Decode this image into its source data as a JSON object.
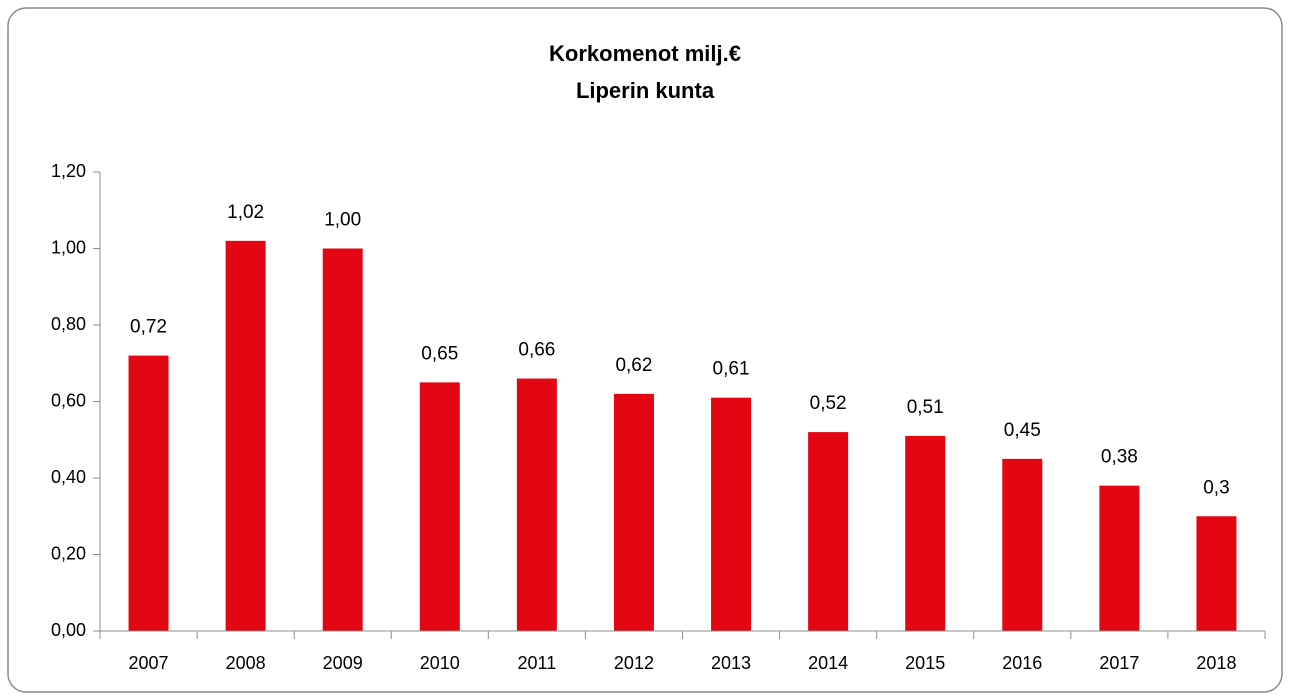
{
  "chart_data": {
    "type": "bar",
    "title": "Korkomenot milj.€",
    "subtitle": "Liperin kunta",
    "categories": [
      "2007",
      "2008",
      "2009",
      "2010",
      "2011",
      "2012",
      "2013",
      "2014",
      "2015",
      "2016",
      "2017",
      "2018"
    ],
    "values": [
      0.72,
      1.02,
      1.0,
      0.65,
      0.66,
      0.62,
      0.61,
      0.52,
      0.51,
      0.45,
      0.38,
      0.3
    ],
    "value_labels": [
      "0,72",
      "1,02",
      "1,00",
      "0,65",
      "0,66",
      "0,62",
      "0,61",
      "0,52",
      "0,51",
      "0,45",
      "0,38",
      "0,3"
    ],
    "color": "#e30613",
    "ylim": [
      0,
      1.2
    ],
    "yticks": [
      {
        "value": 0,
        "label": "0,00"
      },
      {
        "value": 0.2,
        "label": "0,20"
      },
      {
        "value": 0.4,
        "label": "0,40"
      },
      {
        "value": 0.6,
        "label": "0,60"
      },
      {
        "value": 0.8,
        "label": "0,80"
      },
      {
        "value": 1.0,
        "label": "1,00"
      },
      {
        "value": 1.2,
        "label": "1,20"
      }
    ],
    "grid": false
  }
}
